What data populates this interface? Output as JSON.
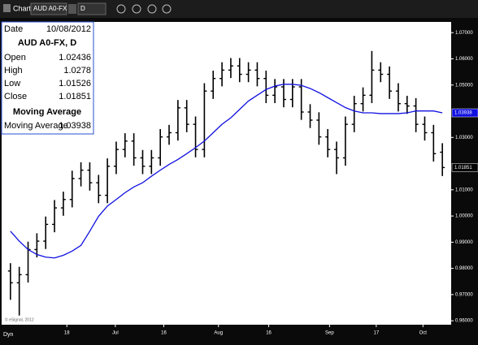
{
  "chart_data": {
    "type": "ohlc",
    "toolbar": {
      "title": "Chart",
      "symbol": "AUD A0-FX",
      "interval": "D"
    },
    "footer": {
      "mode": "Dyn",
      "copyright": "© eSignal, 2012"
    },
    "info": {
      "date_label": "Date",
      "date": "10/08/2012",
      "symbol": "AUD A0-FX, D",
      "open_label": "Open",
      "high_label": "High",
      "low_label": "Low",
      "close_label": "Close",
      "study_title": "Moving Average"
    },
    "bar_color": "#000000",
    "x": [
      0,
      1,
      2,
      3,
      4,
      5,
      6,
      7,
      8,
      9,
      10,
      11,
      12,
      13,
      14,
      15,
      16,
      17,
      18,
      19,
      20,
      21,
      22,
      23,
      24,
      25,
      26,
      27,
      28,
      29,
      30,
      31,
      32,
      33,
      34,
      35,
      36,
      37,
      38,
      39,
      40,
      41,
      42,
      43,
      44,
      45,
      46,
      47,
      48,
      49
    ],
    "open": [
      0.979,
      0.9745,
      0.9776,
      0.9872,
      0.9904,
      0.9968,
      1.0031,
      1.0063,
      1.0143,
      1.0175,
      1.0127,
      1.0079,
      1.019,
      1.0254,
      1.0286,
      1.0222,
      1.019,
      1.0222,
      1.0302,
      1.0318,
      1.0413,
      1.035,
      1.0254,
      1.0477,
      1.0525,
      1.0557,
      1.0573,
      1.0541,
      1.0557,
      1.0525,
      1.0461,
      1.0493,
      1.0445,
      1.0493,
      1.0397,
      1.0366,
      1.0302,
      1.0254,
      1.0222,
      1.035,
      1.0429,
      1.0461,
      1.0557,
      1.0541,
      1.0477,
      1.0429,
      1.042,
      1.035,
      1.0318,
      1.02436
    ],
    "high": [
      0.982,
      0.9806,
      0.9902,
      0.9934,
      0.9998,
      1.0061,
      1.0093,
      1.0173,
      1.0205,
      1.0205,
      1.0157,
      1.022,
      1.0284,
      1.0316,
      1.0316,
      1.0252,
      1.0252,
      1.0332,
      1.0348,
      1.0443,
      1.0443,
      1.038,
      1.0507,
      1.0555,
      1.0587,
      1.0603,
      1.0603,
      1.0587,
      1.0587,
      1.0555,
      1.0523,
      1.0523,
      1.0523,
      1.0523,
      1.0427,
      1.0396,
      1.0332,
      1.0284,
      1.038,
      1.0459,
      1.0491,
      1.063,
      1.0587,
      1.0571,
      1.0507,
      1.0459,
      1.045,
      1.038,
      1.0348,
      1.0278
    ],
    "low": [
      0.968,
      0.962,
      0.9746,
      0.9842,
      0.9874,
      0.9938,
      1.0001,
      1.0033,
      1.0113,
      1.0097,
      1.0049,
      1.0049,
      1.016,
      1.0224,
      1.0192,
      1.016,
      1.016,
      1.0192,
      1.0272,
      1.0288,
      1.032,
      1.0224,
      1.0224,
      1.0447,
      1.0495,
      1.0527,
      1.0511,
      1.0511,
      1.0495,
      1.0431,
      1.0431,
      1.0415,
      1.0415,
      1.0367,
      1.0336,
      1.0272,
      1.0224,
      1.016,
      1.0192,
      1.032,
      1.0399,
      1.0431,
      1.0511,
      1.0447,
      1.0399,
      1.039,
      1.032,
      1.0288,
      1.0208,
      1.01526
    ],
    "close": [
      0.9745,
      0.9776,
      0.9872,
      0.9904,
      0.9968,
      1.0031,
      1.0063,
      1.0143,
      1.0175,
      1.0127,
      1.0079,
      1.019,
      1.0254,
      1.0286,
      1.0222,
      1.019,
      1.0222,
      1.0302,
      1.0318,
      1.0413,
      1.035,
      1.0254,
      1.0477,
      1.0525,
      1.0557,
      1.0573,
      1.0541,
      1.0557,
      1.0525,
      1.0461,
      1.0493,
      1.0445,
      1.0493,
      1.0397,
      1.0366,
      1.0302,
      1.0254,
      1.0222,
      1.035,
      1.0429,
      1.0461,
      1.0557,
      1.0541,
      1.0477,
      1.0429,
      1.042,
      1.035,
      1.0318,
      1.0238,
      1.01851
    ],
    "ma": {
      "name": "Moving Average",
      "color": "#1010e0",
      "values": [
        0.9942,
        0.9904,
        0.9872,
        0.9853,
        0.9843,
        0.984,
        0.985,
        0.9866,
        0.9888,
        0.9942,
        0.9999,
        1.0038,
        1.0063,
        1.0089,
        1.0111,
        1.0127,
        1.0152,
        1.0175,
        1.0197,
        1.0216,
        1.0238,
        1.0261,
        1.0286,
        1.0318,
        1.035,
        1.0375,
        1.0407,
        1.0439,
        1.0461,
        1.0483,
        1.0496,
        1.0503,
        1.0503,
        1.0499,
        1.0487,
        1.0471,
        1.0452,
        1.0433,
        1.0414,
        1.0401,
        1.0394,
        1.0394,
        1.0391,
        1.0391,
        1.0391,
        1.0394,
        1.0401,
        1.0401,
        1.0401,
        1.03938
      ]
    },
    "xlim": [
      -1,
      50
    ],
    "xticks": [
      {
        "value": 6.4,
        "label": "18"
      },
      {
        "value": 11.9,
        "label": "Jul"
      },
      {
        "value": 17.4,
        "label": "16"
      },
      {
        "value": 23.6,
        "label": "Aug"
      },
      {
        "value": 29.3,
        "label": "16"
      },
      {
        "value": 36.2,
        "label": "Sep"
      },
      {
        "value": 41.5,
        "label": "17"
      },
      {
        "value": 46.8,
        "label": "Oct"
      }
    ],
    "ylim": [
      0.9585,
      1.0741
    ],
    "yticks": [
      {
        "value": 0.96,
        "label": "0.96000"
      },
      {
        "value": 0.97,
        "label": "0.97000"
      },
      {
        "value": 0.98,
        "label": "0.98000"
      },
      {
        "value": 0.99,
        "label": "0.99000"
      },
      {
        "value": 1.0,
        "label": "1.00000"
      },
      {
        "value": 1.01,
        "label": "1.01000"
      },
      {
        "value": 1.03,
        "label": "1.03000"
      },
      {
        "value": 1.05,
        "label": "1.05000"
      },
      {
        "value": 1.06,
        "label": "1.06000"
      },
      {
        "value": 1.07,
        "label": "1.07000"
      }
    ]
  }
}
